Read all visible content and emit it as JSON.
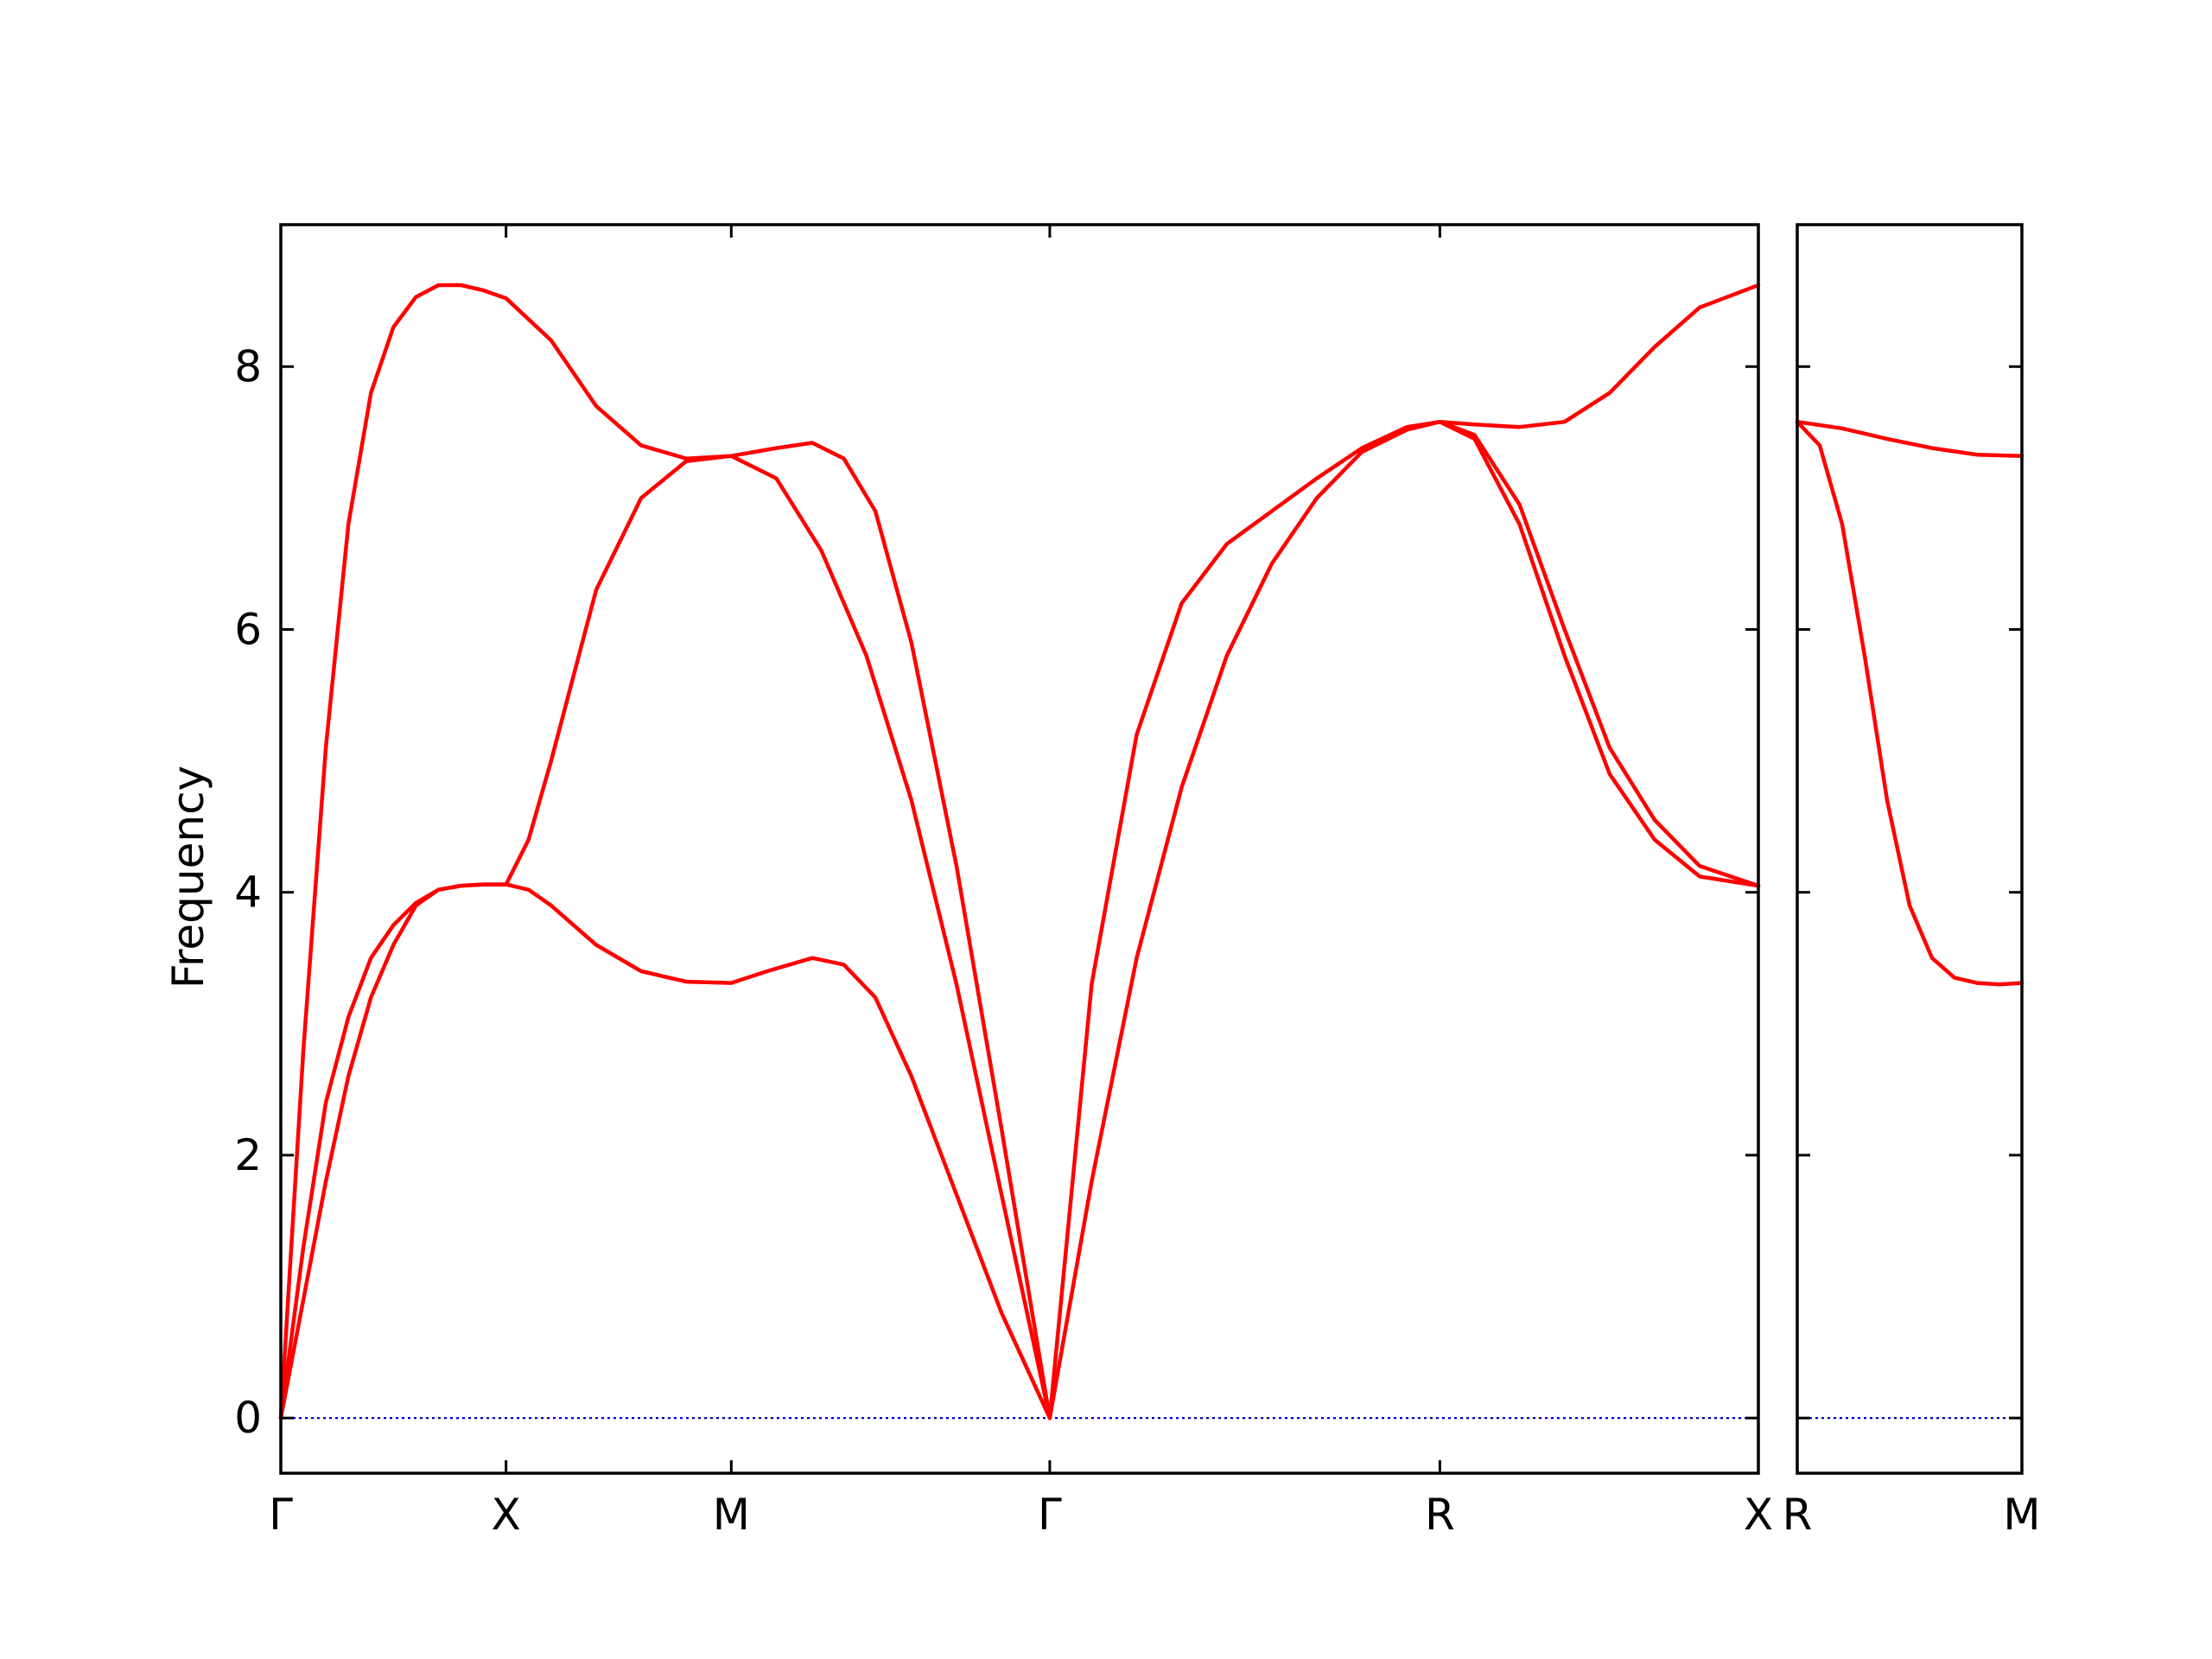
{
  "chart_data": {
    "type": "line",
    "ylabel": "Frequency",
    "ylim": [
      -0.42,
      9.08
    ],
    "yticks": [
      0,
      2,
      4,
      6,
      8
    ],
    "ytick_labels": [
      "0",
      "2",
      "4",
      "6",
      "8"
    ],
    "colors": {
      "bands": "#ff0000",
      "zero_line": "#0000cd",
      "frame": "#000000"
    },
    "panels": [
      {
        "segments": [
          {
            "from": "Γ",
            "to": "X",
            "length": 0.5
          },
          {
            "from": "X",
            "to": "M",
            "length": 0.5
          },
          {
            "from": "M",
            "to": "Γ",
            "length": 0.7071
          },
          {
            "from": "Γ",
            "to": "R",
            "length": 0.866
          },
          {
            "from": "R",
            "to": "X",
            "length": 0.7071
          }
        ],
        "xticks": [
          {
            "label": "Γ",
            "position": 0.0
          },
          {
            "label": "X",
            "position": 0.5
          },
          {
            "label": "M",
            "position": 1.0
          },
          {
            "label": "Γ",
            "position": 1.7071
          },
          {
            "label": "R",
            "position": 2.5731
          },
          {
            "label": "X",
            "position": 3.2802
          }
        ],
        "bands": [
          {
            "name": "",
            "points": [
              [
                0,
                0
              ],
              [
                0.05,
                1.3
              ],
              [
                0.1,
                2.4
              ],
              [
                0.15,
                3.05
              ],
              [
                0.2,
                3.5
              ],
              [
                0.25,
                3.75
              ],
              [
                0.3,
                3.92
              ],
              [
                0.35,
                4.02
              ],
              [
                0.4,
                4.05
              ],
              [
                0.45,
                4.06
              ],
              [
                0.5,
                4.06
              ],
              [
                0.55,
                4.02
              ],
              [
                0.6,
                3.9
              ],
              [
                0.7,
                3.6
              ],
              [
                0.8,
                3.4
              ],
              [
                0.9,
                3.32
              ],
              [
                1.0,
                3.31
              ],
              [
                1.08,
                3.4
              ],
              [
                1.18,
                3.5
              ],
              [
                1.25,
                3.45
              ],
              [
                1.32,
                3.2
              ],
              [
                1.4,
                2.6
              ],
              [
                1.5,
                1.7
              ],
              [
                1.6,
                0.8
              ],
              [
                1.7071,
                0
              ]
            ]
          },
          {
            "name": "",
            "points": [
              [
                0,
                0
              ],
              [
                0.05,
                0.9
              ],
              [
                0.1,
                1.8
              ],
              [
                0.15,
                2.6
              ],
              [
                0.2,
                3.2
              ],
              [
                0.25,
                3.6
              ],
              [
                0.3,
                3.9
              ],
              [
                0.35,
                4.02
              ],
              [
                0.4,
                4.05
              ],
              [
                0.45,
                4.06
              ],
              [
                0.5,
                4.06
              ],
              [
                0.55,
                4.4
              ],
              [
                0.6,
                5.0
              ],
              [
                0.7,
                6.3
              ],
              [
                0.8,
                7.0
              ],
              [
                0.9,
                7.28
              ],
              [
                1.0,
                7.32
              ],
              [
                1.1,
                7.15
              ],
              [
                1.2,
                6.6
              ],
              [
                1.3,
                5.8
              ],
              [
                1.4,
                4.7
              ],
              [
                1.5,
                3.3
              ],
              [
                1.6,
                1.7
              ],
              [
                1.7071,
                0
              ]
            ]
          },
          {
            "name": "",
            "points": [
              [
                0,
                0
              ],
              [
                0.05,
                2.8
              ],
              [
                0.1,
                5.1
              ],
              [
                0.15,
                6.8
              ],
              [
                0.2,
                7.8
              ],
              [
                0.25,
                8.3
              ],
              [
                0.3,
                8.53
              ],
              [
                0.35,
                8.62
              ],
              [
                0.4,
                8.62
              ],
              [
                0.45,
                8.58
              ],
              [
                0.5,
                8.52
              ],
              [
                0.6,
                8.2
              ],
              [
                0.7,
                7.7
              ],
              [
                0.8,
                7.4
              ],
              [
                0.9,
                7.3
              ],
              [
                1.0,
                7.32
              ],
              [
                1.1,
                7.38
              ],
              [
                1.18,
                7.42
              ],
              [
                1.25,
                7.3
              ],
              [
                1.32,
                6.9
              ],
              [
                1.4,
                5.9
              ],
              [
                1.5,
                4.2
              ],
              [
                1.6,
                2.2
              ],
              [
                1.7071,
                0
              ]
            ]
          },
          {
            "name": "",
            "points": [
              [
                1.7071,
                0
              ],
              [
                1.8,
                1.8
              ],
              [
                1.9,
                3.5
              ],
              [
                2.0,
                4.8
              ],
              [
                2.1,
                5.8
              ],
              [
                2.2,
                6.5
              ],
              [
                2.3,
                7.0
              ],
              [
                2.4,
                7.35
              ],
              [
                2.5,
                7.52
              ],
              [
                2.5731,
                7.58
              ],
              [
                2.65,
                7.45
              ],
              [
                2.75,
                6.8
              ],
              [
                2.85,
                5.8
              ],
              [
                2.95,
                4.9
              ],
              [
                3.05,
                4.4
              ],
              [
                3.15,
                4.12
              ],
              [
                3.2802,
                4.05
              ]
            ]
          },
          {
            "name": "",
            "points": [
              [
                1.7071,
                0
              ],
              [
                1.8,
                3.3
              ],
              [
                1.9,
                5.2
              ],
              [
                2.0,
                6.2
              ],
              [
                2.1,
                6.65
              ],
              [
                2.2,
                6.9
              ],
              [
                2.3,
                7.15
              ],
              [
                2.4,
                7.38
              ],
              [
                2.5,
                7.54
              ],
              [
                2.5731,
                7.58
              ],
              [
                2.65,
                7.48
              ],
              [
                2.75,
                6.95
              ],
              [
                2.85,
                6.0
              ],
              [
                2.95,
                5.1
              ],
              [
                3.05,
                4.55
              ],
              [
                3.15,
                4.2
              ],
              [
                3.2802,
                4.05
              ]
            ]
          },
          {
            "name": "",
            "points": [
              [
                2.5731,
                7.58
              ],
              [
                2.65,
                7.56
              ],
              [
                2.75,
                7.54
              ],
              [
                2.85,
                7.58
              ],
              [
                2.95,
                7.8
              ],
              [
                3.05,
                8.15
              ],
              [
                3.15,
                8.45
              ],
              [
                3.2802,
                8.62
              ]
            ]
          }
        ]
      },
      {
        "segments": [
          {
            "from": "R",
            "to": "M",
            "length": 0.5
          }
        ],
        "xticks": [
          {
            "label": "R",
            "position": 0.0
          },
          {
            "label": "M",
            "position": 0.5
          }
        ],
        "bands": [
          {
            "name": "",
            "points": [
              [
                0,
                7.58
              ],
              [
                0.05,
                7.4
              ],
              [
                0.1,
                6.8
              ],
              [
                0.15,
                5.8
              ],
              [
                0.2,
                4.7
              ],
              [
                0.25,
                3.9
              ],
              [
                0.3,
                3.5
              ],
              [
                0.35,
                3.35
              ],
              [
                0.4,
                3.31
              ],
              [
                0.45,
                3.3
              ],
              [
                0.5,
                3.31
              ]
            ]
          },
          {
            "name": "",
            "points": [
              [
                0,
                7.58
              ],
              [
                0.1,
                7.53
              ],
              [
                0.2,
                7.45
              ],
              [
                0.3,
                7.38
              ],
              [
                0.4,
                7.33
              ],
              [
                0.5,
                7.32
              ]
            ]
          }
        ]
      }
    ]
  }
}
